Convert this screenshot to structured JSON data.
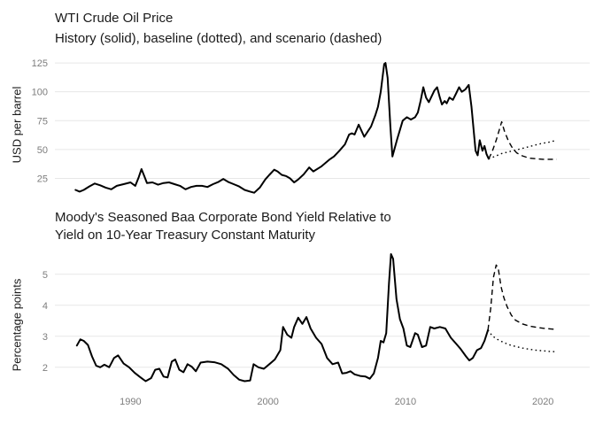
{
  "figure": {
    "background": "#ffffff",
    "panels": [
      "wti",
      "baa-spread"
    ],
    "x_axis_labels_shown": "bottom panel only"
  },
  "colors": {
    "line": "#000000",
    "grid": "#e7e7e7",
    "tick_label": "#7d7d7d",
    "title_text": "#1a1a1a",
    "background": "#ffffff"
  },
  "chart_data": [
    {
      "type": "line",
      "title": "WTI Crude Oil Price",
      "subtitle": "History (solid), baseline (dotted), and scenario (dashed)",
      "ylabel": "USD per barrel",
      "xlabel": "",
      "yticks": [
        25,
        50,
        75,
        100,
        125
      ],
      "xticks": [
        1990,
        2000,
        2010,
        2020
      ],
      "xlim": [
        1984.5,
        2023.4
      ],
      "ylim": [
        10,
        133.5
      ],
      "grid": "horizontal only",
      "legend": "none",
      "series": [
        {
          "name": "history",
          "style": "solid",
          "points": [
            [
              1986,
              15
            ],
            [
              1986.3,
              13.5
            ],
            [
              1986.6,
              15
            ],
            [
              1987,
              18
            ],
            [
              1987.4,
              20.5
            ],
            [
              1987.8,
              19
            ],
            [
              1988.2,
              17
            ],
            [
              1988.6,
              15.5
            ],
            [
              1989,
              18.5
            ],
            [
              1989.5,
              20
            ],
            [
              1990,
              21.5
            ],
            [
              1990.35,
              18.5
            ],
            [
              1990.6,
              26
            ],
            [
              1990.8,
              33
            ],
            [
              1991,
              27
            ],
            [
              1991.2,
              21
            ],
            [
              1991.6,
              21.5
            ],
            [
              1992,
              19.5
            ],
            [
              1992.4,
              21
            ],
            [
              1992.8,
              21.5
            ],
            [
              1993.2,
              20
            ],
            [
              1993.6,
              18.5
            ],
            [
              1994,
              15.5
            ],
            [
              1994.4,
              17.5
            ],
            [
              1994.8,
              18.5
            ],
            [
              1995.2,
              18.5
            ],
            [
              1995.6,
              17.5
            ],
            [
              1996,
              20
            ],
            [
              1996.4,
              22
            ],
            [
              1996.75,
              24.5
            ],
            [
              1997.1,
              22
            ],
            [
              1997.5,
              20
            ],
            [
              1997.9,
              18
            ],
            [
              1998.3,
              15
            ],
            [
              1998.7,
              13.5
            ],
            [
              1999,
              12.5
            ],
            [
              1999.4,
              17
            ],
            [
              1999.8,
              24
            ],
            [
              2000.1,
              28
            ],
            [
              2000.45,
              32.5
            ],
            [
              2000.7,
              31
            ],
            [
              2001,
              28
            ],
            [
              2001.3,
              27
            ],
            [
              2001.6,
              25
            ],
            [
              2001.9,
              21.5
            ],
            [
              2002.2,
              24
            ],
            [
              2002.6,
              28.5
            ],
            [
              2003,
              34.5
            ],
            [
              2003.3,
              31
            ],
            [
              2003.9,
              35.5
            ],
            [
              2004.5,
              41.5
            ],
            [
              2004.8,
              44
            ],
            [
              2005.2,
              49
            ],
            [
              2005.6,
              54.5
            ],
            [
              2005.9,
              63
            ],
            [
              2006.1,
              64
            ],
            [
              2006.3,
              63
            ],
            [
              2006.6,
              71.5
            ],
            [
              2007,
              61
            ],
            [
              2007.5,
              70
            ],
            [
              2007.8,
              79.5
            ],
            [
              2008,
              87
            ],
            [
              2008.2,
              100
            ],
            [
              2008.45,
              124
            ],
            [
              2008.55,
              125
            ],
            [
              2008.7,
              112
            ],
            [
              2008.9,
              70
            ],
            [
              2009.05,
              44
            ],
            [
              2009.4,
              59
            ],
            [
              2009.8,
              75
            ],
            [
              2010.1,
              78
            ],
            [
              2010.4,
              76
            ],
            [
              2010.7,
              78
            ],
            [
              2010.9,
              82
            ],
            [
              2011.1,
              92
            ],
            [
              2011.3,
              104
            ],
            [
              2011.5,
              95
            ],
            [
              2011.7,
              91
            ],
            [
              2011.9,
              96
            ],
            [
              2012.1,
              101
            ],
            [
              2012.3,
              104
            ],
            [
              2012.5,
              95
            ],
            [
              2012.65,
              89
            ],
            [
              2012.85,
              92
            ],
            [
              2013,
              90
            ],
            [
              2013.2,
              95
            ],
            [
              2013.45,
              93
            ],
            [
              2013.7,
              99
            ],
            [
              2013.9,
              104
            ],
            [
              2014.1,
              100
            ],
            [
              2014.35,
              102
            ],
            [
              2014.6,
              106
            ],
            [
              2014.8,
              87
            ],
            [
              2015.1,
              49
            ],
            [
              2015.25,
              45
            ],
            [
              2015.4,
              58
            ],
            [
              2015.6,
              49
            ],
            [
              2015.75,
              53
            ],
            [
              2015.9,
              46
            ],
            [
              2016.05,
              42
            ]
          ]
        },
        {
          "name": "baseline",
          "style": "dotted",
          "points": [
            [
              2016.05,
              42
            ],
            [
              2016.5,
              44
            ],
            [
              2017,
              46.5
            ],
            [
              2017.5,
              48
            ],
            [
              2018,
              49.5
            ],
            [
              2018.5,
              51
            ],
            [
              2019,
              52.5
            ],
            [
              2019.5,
              54
            ],
            [
              2020,
              55.5
            ],
            [
              2020.5,
              56.5
            ],
            [
              2021,
              58
            ]
          ]
        },
        {
          "name": "scenario",
          "style": "dashed",
          "points": [
            [
              2016.05,
              42
            ],
            [
              2016.3,
              48
            ],
            [
              2016.6,
              58
            ],
            [
              2016.85,
              68
            ],
            [
              2017,
              74
            ],
            [
              2017.2,
              66
            ],
            [
              2017.5,
              57
            ],
            [
              2017.8,
              51
            ],
            [
              2018.1,
              47
            ],
            [
              2018.5,
              44.5
            ],
            [
              2019,
              42.5
            ],
            [
              2019.5,
              42
            ],
            [
              2020,
              41.5
            ],
            [
              2020.5,
              41.5
            ],
            [
              2021,
              41.5
            ]
          ]
        }
      ]
    },
    {
      "type": "line",
      "title": "Moody's Seasoned Baa Corporate Bond Yield Relative to Yield on 10-Year Treasury Constant Maturity",
      "subtitle": "",
      "ylabel": "Percentage points",
      "xlabel": "",
      "yticks": [
        2,
        3,
        4,
        5
      ],
      "xticks": [
        1990,
        2000,
        2010,
        2020
      ],
      "xlim": [
        1984.5,
        2023.4
      ],
      "ylim": [
        1.25,
        5.45
      ],
      "grid": "horizontal only",
      "legend": "none",
      "series": [
        {
          "name": "history",
          "style": "solid",
          "points": [
            [
              1986.1,
              2.7
            ],
            [
              1986.35,
              2.9
            ],
            [
              1986.6,
              2.85
            ],
            [
              1986.9,
              2.72
            ],
            [
              1987.2,
              2.35
            ],
            [
              1987.5,
              2.05
            ],
            [
              1987.8,
              2
            ],
            [
              1988.1,
              2.08
            ],
            [
              1988.45,
              2
            ],
            [
              1988.8,
              2.3
            ],
            [
              1989.1,
              2.38
            ],
            [
              1989.5,
              2.12
            ],
            [
              1989.9,
              2
            ],
            [
              1990.3,
              1.82
            ],
            [
              1990.7,
              1.68
            ],
            [
              1991.1,
              1.55
            ],
            [
              1991.5,
              1.65
            ],
            [
              1991.8,
              1.92
            ],
            [
              1992.1,
              1.95
            ],
            [
              1992.4,
              1.7
            ],
            [
              1992.7,
              1.67
            ],
            [
              1993,
              2.18
            ],
            [
              1993.25,
              2.25
            ],
            [
              1993.55,
              1.92
            ],
            [
              1993.85,
              1.84
            ],
            [
              1994.15,
              2.1
            ],
            [
              1994.45,
              2.02
            ],
            [
              1994.75,
              1.87
            ],
            [
              1995.1,
              2.15
            ],
            [
              1995.6,
              2.18
            ],
            [
              1996.1,
              2.16
            ],
            [
              1996.6,
              2.1
            ],
            [
              1997.1,
              1.95
            ],
            [
              1997.5,
              1.75
            ],
            [
              1997.9,
              1.6
            ],
            [
              1998.3,
              1.55
            ],
            [
              1998.7,
              1.57
            ],
            [
              1998.95,
              2.1
            ],
            [
              1999.3,
              2
            ],
            [
              1999.7,
              1.95
            ],
            [
              2000.1,
              2.1
            ],
            [
              2000.5,
              2.25
            ],
            [
              2000.9,
              2.55
            ],
            [
              2001.1,
              3.3
            ],
            [
              2001.4,
              3.05
            ],
            [
              2001.7,
              2.95
            ],
            [
              2001.9,
              3.3
            ],
            [
              2002.2,
              3.6
            ],
            [
              2002.5,
              3.4
            ],
            [
              2002.8,
              3.62
            ],
            [
              2003.1,
              3.25
            ],
            [
              2003.5,
              2.95
            ],
            [
              2003.9,
              2.75
            ],
            [
              2004.3,
              2.3
            ],
            [
              2004.7,
              2.1
            ],
            [
              2005.1,
              2.15
            ],
            [
              2005.4,
              1.8
            ],
            [
              2005.7,
              1.82
            ],
            [
              2006,
              1.87
            ],
            [
              2006.3,
              1.77
            ],
            [
              2006.7,
              1.72
            ],
            [
              2007.1,
              1.7
            ],
            [
              2007.4,
              1.63
            ],
            [
              2007.7,
              1.8
            ],
            [
              2008,
              2.3
            ],
            [
              2008.2,
              2.85
            ],
            [
              2008.4,
              2.8
            ],
            [
              2008.6,
              3.1
            ],
            [
              2008.8,
              4.7
            ],
            [
              2008.95,
              5.65
            ],
            [
              2009.1,
              5.5
            ],
            [
              2009.35,
              4.2
            ],
            [
              2009.6,
              3.55
            ],
            [
              2009.85,
              3.25
            ],
            [
              2010.1,
              2.7
            ],
            [
              2010.35,
              2.65
            ],
            [
              2010.7,
              3.1
            ],
            [
              2010.9,
              3.05
            ],
            [
              2011.2,
              2.65
            ],
            [
              2011.5,
              2.7
            ],
            [
              2011.8,
              3.3
            ],
            [
              2012.1,
              3.25
            ],
            [
              2012.5,
              3.3
            ],
            [
              2012.9,
              3.25
            ],
            [
              2013.3,
              2.95
            ],
            [
              2013.7,
              2.75
            ],
            [
              2014,
              2.6
            ],
            [
              2014.4,
              2.35
            ],
            [
              2014.65,
              2.22
            ],
            [
              2014.9,
              2.3
            ],
            [
              2015.2,
              2.55
            ],
            [
              2015.5,
              2.62
            ],
            [
              2015.75,
              2.85
            ],
            [
              2016,
              3.2
            ]
          ]
        },
        {
          "name": "baseline",
          "style": "dotted",
          "points": [
            [
              2016,
              3.2
            ],
            [
              2016.3,
              3.02
            ],
            [
              2016.6,
              2.92
            ],
            [
              2017,
              2.83
            ],
            [
              2017.5,
              2.73
            ],
            [
              2018,
              2.67
            ],
            [
              2018.5,
              2.62
            ],
            [
              2019,
              2.58
            ],
            [
              2019.5,
              2.55
            ],
            [
              2020,
              2.53
            ],
            [
              2020.5,
              2.51
            ],
            [
              2021,
              2.5
            ]
          ]
        },
        {
          "name": "scenario",
          "style": "dashed",
          "points": [
            [
              2016,
              3.2
            ],
            [
              2016.2,
              3.9
            ],
            [
              2016.4,
              4.9
            ],
            [
              2016.6,
              5.3
            ],
            [
              2016.75,
              5.2
            ],
            [
              2016.95,
              4.6
            ],
            [
              2017.15,
              4.25
            ],
            [
              2017.4,
              3.95
            ],
            [
              2017.7,
              3.68
            ],
            [
              2018,
              3.52
            ],
            [
              2018.5,
              3.4
            ],
            [
              2019,
              3.33
            ],
            [
              2019.5,
              3.29
            ],
            [
              2020,
              3.26
            ],
            [
              2020.5,
              3.24
            ],
            [
              2021,
              3.22
            ]
          ]
        }
      ]
    }
  ]
}
